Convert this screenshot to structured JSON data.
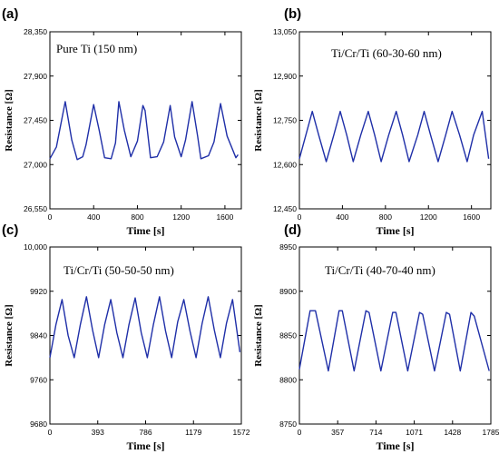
{
  "chart_data": [
    {
      "type": "line",
      "panel": "(a)",
      "title": "Pure Ti (150 nm)",
      "xlabel": "Time [s]",
      "ylabel": "Resistance [Ω]",
      "xlim": [
        0,
        1750
      ],
      "ylim": [
        26550,
        28350
      ],
      "xticks": [
        "0",
        "400",
        "800",
        "1200",
        "1600"
      ],
      "xtick_values": [
        0,
        400,
        800,
        1200,
        1600
      ],
      "yticks": [
        "26,550",
        "27,000",
        "27,450",
        "27,900",
        "28,350"
      ],
      "ytick_values": [
        26550,
        27000,
        27450,
        27900,
        28350
      ],
      "color": "#1f2fa8",
      "series": [
        {
          "x": [
            0,
            60,
            140,
            200,
            250,
            300,
            330,
            400,
            450,
            500,
            560,
            600,
            630,
            680,
            740,
            800,
            850,
            870,
            920,
            980,
            1040,
            1100,
            1140,
            1200,
            1240,
            1300,
            1350,
            1380,
            1450,
            1500,
            1560,
            1620,
            1700,
            1720
          ],
          "y": [
            27060,
            27180,
            27640,
            27250,
            27050,
            27080,
            27200,
            27610,
            27350,
            27070,
            27060,
            27220,
            27640,
            27350,
            27080,
            27240,
            27600,
            27550,
            27070,
            27080,
            27230,
            27600,
            27280,
            27080,
            27250,
            27640,
            27290,
            27060,
            27090,
            27230,
            27620,
            27290,
            27070,
            27100
          ]
        }
      ]
    },
    {
      "type": "line",
      "panel": "(b)",
      "title": "Ti/Cr/Ti (60-30-60 nm)",
      "xlabel": "Time [s]",
      "ylabel": "Resistance [Ω]",
      "xlim": [
        0,
        1780
      ],
      "ylim": [
        12450,
        13050
      ],
      "xticks": [
        "0",
        "400",
        "800",
        "1200",
        "1600"
      ],
      "xtick_values": [
        0,
        400,
        800,
        1200,
        1600
      ],
      "yticks": [
        "12,450",
        "12,600",
        "12,750",
        "12,900",
        "13,050"
      ],
      "ytick_values": [
        12450,
        12600,
        12750,
        12900,
        13050
      ],
      "color": "#1f2fa8",
      "series": [
        {
          "x": [
            0,
            60,
            120,
            180,
            250,
            320,
            380,
            440,
            500,
            570,
            640,
            700,
            760,
            830,
            900,
            960,
            1020,
            1100,
            1160,
            1220,
            1290,
            1360,
            1420,
            1490,
            1560,
            1620,
            1700,
            1760
          ],
          "y": [
            12620,
            12700,
            12780,
            12700,
            12610,
            12700,
            12780,
            12700,
            12610,
            12700,
            12780,
            12700,
            12610,
            12700,
            12780,
            12700,
            12610,
            12700,
            12780,
            12700,
            12610,
            12700,
            12780,
            12700,
            12610,
            12700,
            12780,
            12620
          ]
        }
      ]
    },
    {
      "type": "line",
      "panel": "(c)",
      "title": "Ti/Cr/Ti (50-50-50 nm)",
      "xlabel": "Time [s]",
      "ylabel": "Resistance [Ω]",
      "xlim": [
        0,
        1572
      ],
      "ylim": [
        9680,
        10000
      ],
      "xticks": [
        "0",
        "393",
        "786",
        "1179",
        "1572"
      ],
      "xtick_values": [
        0,
        393,
        786,
        1179,
        1572
      ],
      "yticks": [
        "9680",
        "9760",
        "9840",
        "9920",
        "10,000"
      ],
      "ytick_values": [
        9680,
        9760,
        9840,
        9920,
        10000
      ],
      "color": "#1f2fa8",
      "series": [
        {
          "x": [
            0,
            50,
            100,
            150,
            200,
            250,
            300,
            350,
            400,
            450,
            500,
            550,
            600,
            650,
            700,
            750,
            800,
            850,
            900,
            950,
            1000,
            1050,
            1100,
            1150,
            1200,
            1250,
            1300,
            1350,
            1400,
            1450,
            1500,
            1560
          ],
          "y": [
            9800,
            9860,
            9905,
            9840,
            9800,
            9860,
            9910,
            9850,
            9800,
            9860,
            9905,
            9845,
            9800,
            9860,
            9908,
            9845,
            9800,
            9860,
            9910,
            9848,
            9800,
            9865,
            9905,
            9848,
            9800,
            9862,
            9910,
            9850,
            9800,
            9862,
            9905,
            9810
          ]
        }
      ]
    },
    {
      "type": "line",
      "panel": "(d)",
      "title": "Ti/Cr/Ti (40-70-40 nm)",
      "xlabel": "Time [s]",
      "ylabel": "Resistance [Ω]",
      "xlim": [
        0,
        1785
      ],
      "ylim": [
        8750,
        8950
      ],
      "xticks": [
        "0",
        "357",
        "714",
        "1071",
        "1428",
        "1785"
      ],
      "xtick_values": [
        0,
        357,
        714,
        1071,
        1428,
        1785
      ],
      "yticks": [
        "8750",
        "8800",
        "8850",
        "8900",
        "8950"
      ],
      "ytick_values": [
        8750,
        8800,
        8850,
        8900,
        8950
      ],
      "color": "#1f2fa8",
      "series": [
        {
          "x": [
            0,
            100,
            150,
            270,
            370,
            400,
            510,
            620,
            650,
            760,
            870,
            900,
            1010,
            1120,
            1150,
            1260,
            1370,
            1400,
            1500,
            1600,
            1630,
            1770
          ],
          "y": [
            8812,
            8878,
            8878,
            8810,
            8878,
            8878,
            8810,
            8878,
            8876,
            8810,
            8876,
            8876,
            8810,
            8876,
            8874,
            8810,
            8876,
            8874,
            8810,
            8876,
            8872,
            8810
          ]
        }
      ]
    }
  ]
}
